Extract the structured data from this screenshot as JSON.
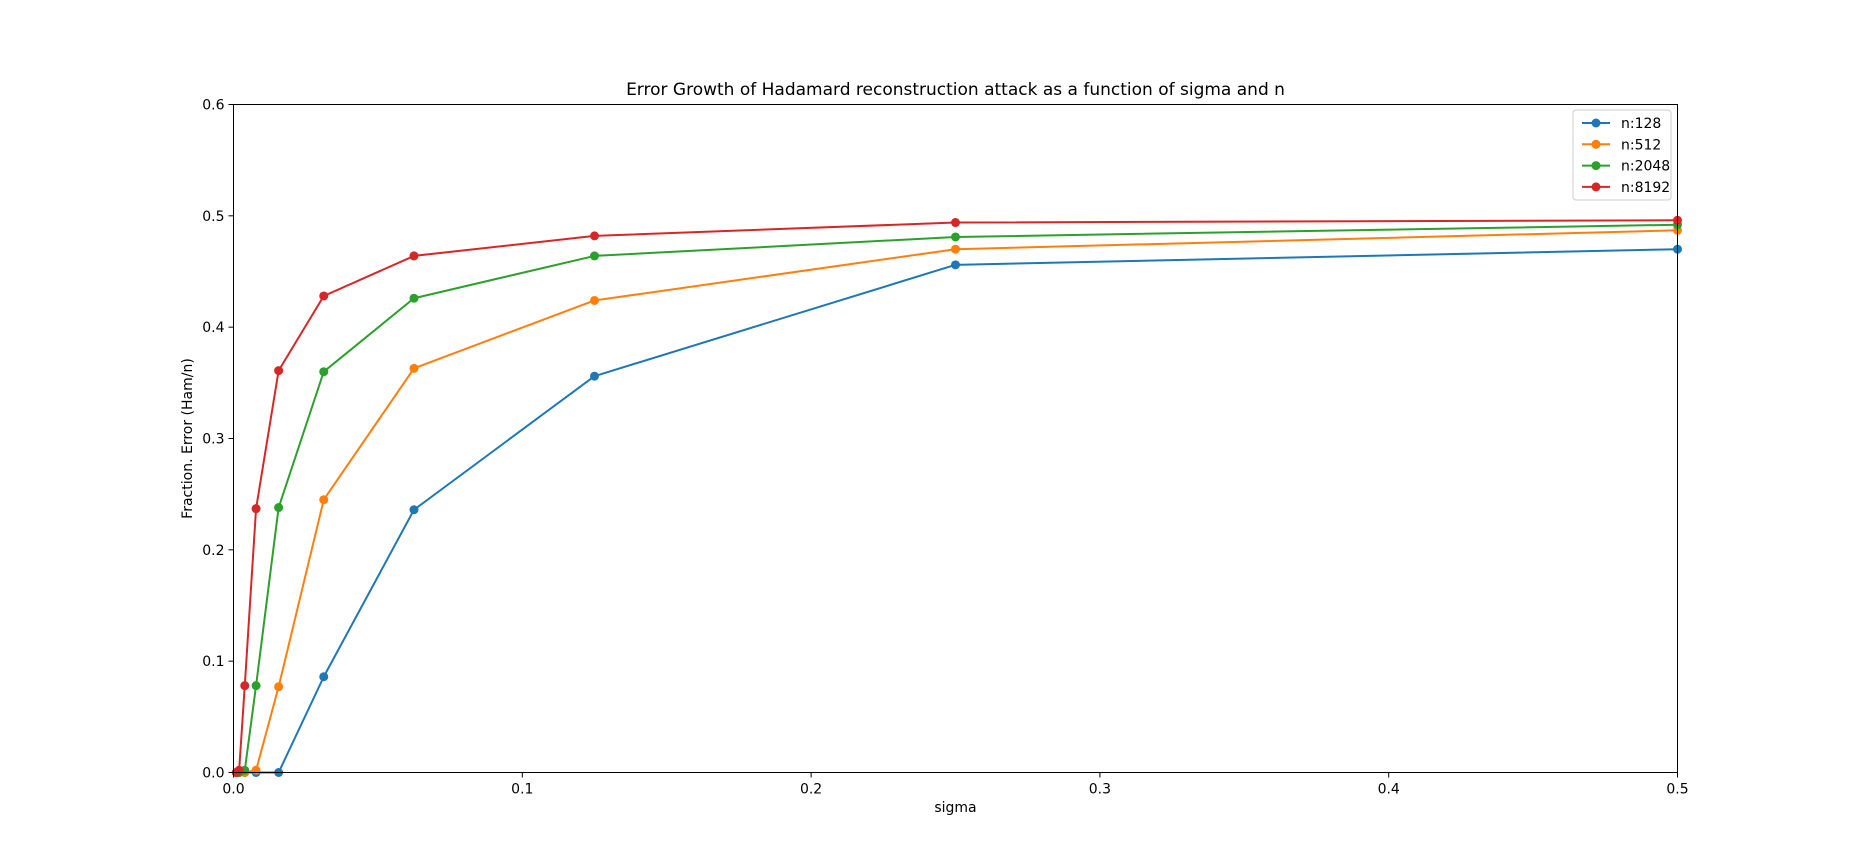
{
  "chart_data": {
    "type": "line",
    "title": "Error Growth of Hadamard reconstruction attack as a function of sigma and n",
    "xlabel": "sigma",
    "ylabel": "Fraction. Error (Ham/n)",
    "xlim": [
      0,
      0.5
    ],
    "ylim": [
      0,
      0.6
    ],
    "xticks": [
      0,
      0.1,
      0.2,
      0.3,
      0.4,
      0.5
    ],
    "xtick_labels": [
      "0.0",
      "0.1",
      "0.2",
      "0.3",
      "0.4",
      "0.5"
    ],
    "yticks": [
      0,
      0.1,
      0.2,
      0.3,
      0.4,
      0.5,
      0.6
    ],
    "ytick_labels": [
      "0.0",
      "0.1",
      "0.2",
      "0.3",
      "0.4",
      "0.5",
      "0.6"
    ],
    "grid": false,
    "legend_position": "top-right",
    "x": [
      0.000977,
      0.001953,
      0.003906,
      0.007813,
      0.015625,
      0.03125,
      0.0625,
      0.125,
      0.25,
      0.5
    ],
    "series": [
      {
        "name": "n:128",
        "color": "#1f77b4",
        "values": [
          0.0,
          0.0,
          0.0,
          0.0,
          0.0,
          0.086,
          0.236,
          0.356,
          0.456,
          0.47
        ]
      },
      {
        "name": "n:512",
        "color": "#ff7f0e",
        "values": [
          0.0,
          0.0,
          0.0,
          0.002,
          0.077,
          0.245,
          0.363,
          0.424,
          0.47,
          0.487
        ]
      },
      {
        "name": "n:2048",
        "color": "#2ca02c",
        "values": [
          0.0,
          0.0,
          0.002,
          0.078,
          0.238,
          0.36,
          0.426,
          0.464,
          0.481,
          0.492
        ]
      },
      {
        "name": "n:8192",
        "color": "#d62728",
        "values": [
          0.0,
          0.002,
          0.078,
          0.237,
          0.361,
          0.428,
          0.464,
          0.482,
          0.494,
          0.496
        ]
      }
    ]
  }
}
